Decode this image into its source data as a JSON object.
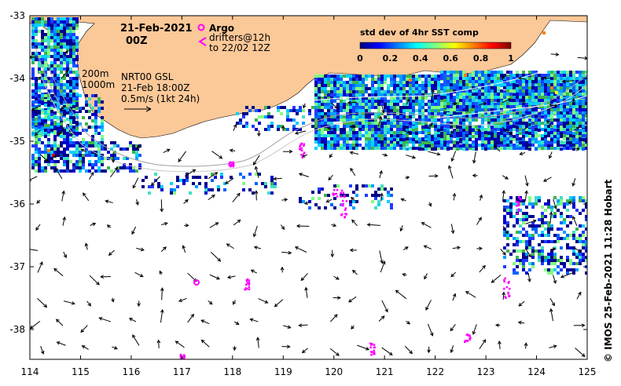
{
  "map": {
    "date_line1": "21-Feb-2021",
    "date_line2": "00Z",
    "contour_label_200": "200m",
    "contour_label_1000": "1000m",
    "current_source": "NRT00 GSL",
    "current_time": "21-Feb 18:00Z",
    "scale_label": "0.5m/s (1kt 24h)",
    "argo_label": "Argo",
    "drifters_line1": "drifters@12h",
    "drifters_line2": "to 22/02 12Z",
    "credit": "© IMOS 25-Feb-2021 11:28 Hobart",
    "land_color": "#fbc898",
    "argo_color": "#ff00ff",
    "lon_ticks": [
      "114",
      "115",
      "116",
      "117",
      "118",
      "119",
      "120",
      "121",
      "122",
      "123",
      "124",
      "125"
    ],
    "lat_ticks": [
      "-33",
      "-34",
      "-35",
      "-36",
      "-37",
      "-38"
    ]
  },
  "colorbar": {
    "title": "std dev of 4hr SST comp",
    "tick_labels": [
      "0",
      "0.2",
      "0.4",
      "0.6",
      "0.8",
      "1"
    ],
    "colors": [
      "#00007f",
      "#0000ff",
      "#007fff",
      "#00ffff",
      "#7fff7f",
      "#ffff00",
      "#ff7f00",
      "#ff0000",
      "#7f0000"
    ]
  }
}
